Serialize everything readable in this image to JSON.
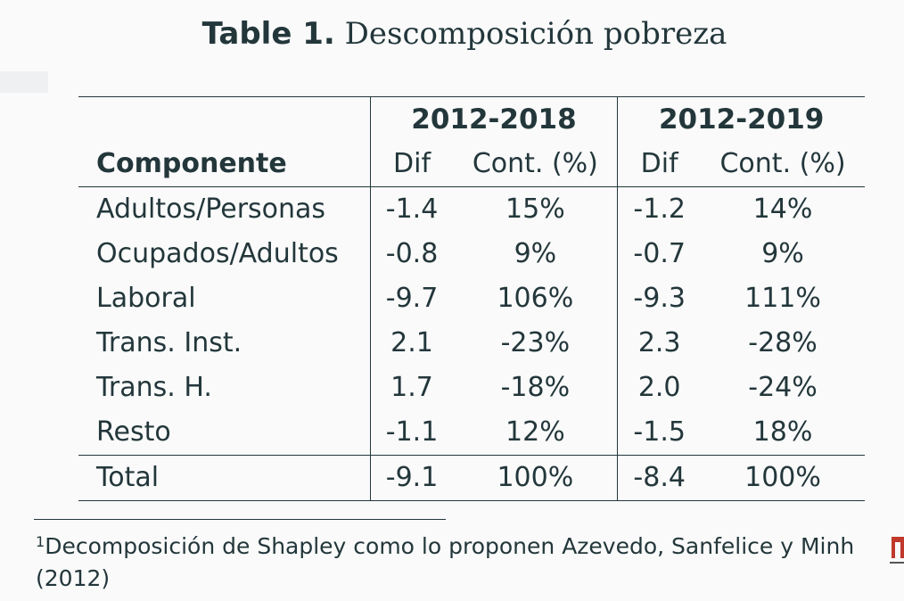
{
  "caption": {
    "number": "Table 1.",
    "text": "Descomposición pobreza"
  },
  "table": {
    "periods": [
      "2012-2018",
      "2012-2019"
    ],
    "component_header": "Componente",
    "sub_headers": [
      "Dif",
      "Cont. (%)",
      "Dif",
      "Cont. (%)"
    ],
    "rows": [
      {
        "name": "Adultos/Personas",
        "cells": [
          "-1.4",
          "15%",
          "-1.2",
          "14%"
        ]
      },
      {
        "name": "Ocupados/Adultos",
        "cells": [
          "-0.8",
          "9%",
          "-0.7",
          "9%"
        ]
      },
      {
        "name": "Laboral",
        "cells": [
          "-9.7",
          "106%",
          "-9.3",
          "111%"
        ]
      },
      {
        "name": "Trans. Inst.",
        "cells": [
          "2.1",
          "-23%",
          "2.3",
          "-28%"
        ]
      },
      {
        "name": "Trans. H.",
        "cells": [
          "1.7",
          "-18%",
          "2.0",
          "-24%"
        ]
      },
      {
        "name": "Resto",
        "cells": [
          "-1.1",
          "12%",
          "-1.5",
          "18%"
        ]
      }
    ],
    "total": {
      "name": "Total",
      "cells": [
        "-9.1",
        "100%",
        "-8.4",
        "100%"
      ]
    }
  },
  "footnote": {
    "mark": "1",
    "text": "Decomposición de Shapley como lo proponen Azevedo, Sanfelice y Minh (2012)"
  },
  "logo": {
    "icon": "institution-logo-icon",
    "color": "#c0392b"
  }
}
